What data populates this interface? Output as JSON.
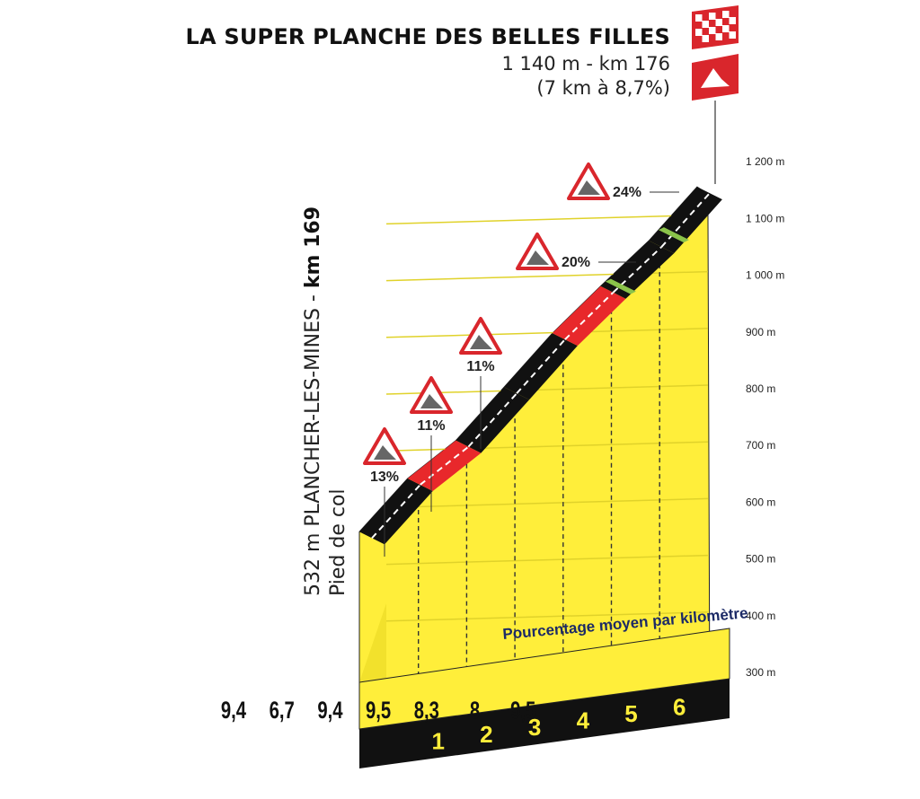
{
  "header": {
    "title": "LA SUPER PLANCHE DES BELLES FILLES",
    "summit_info": "1 140 m - km 176",
    "climb_info": "(7 km à 8,7%)"
  },
  "start": {
    "altitude": "532 m PLANCHER-LES-MINES - ",
    "km": "km 169",
    "label": "Pied de col"
  },
  "icons": {
    "finish": "checkered-flag-icon",
    "summit": "mountain-summit-icon",
    "gradient": "steep-gradient-warning-icon"
  },
  "colors": {
    "profile_fill": "#ffee3a",
    "road_black": "#111111",
    "road_red": "#e8282b",
    "road_green": "#8bc34a",
    "warning_red": "#d9262c",
    "scale_band": "#111111"
  },
  "chart_data": {
    "type": "area",
    "title": "LA SUPER PLANCHE DES BELLES FILLES",
    "xlabel": "",
    "ylabel": "",
    "y_unit": "m",
    "ylim": [
      300,
      1200
    ],
    "y_ticks": [
      "300 m",
      "400 m",
      "500 m",
      "600 m",
      "700 m",
      "800 m",
      "900 m",
      "1 000 m",
      "1 100 m",
      "1 200 m"
    ],
    "y_tick_values": [
      300,
      400,
      500,
      600,
      700,
      800,
      900,
      1000,
      1100,
      1200
    ],
    "x_ticks": [
      "1",
      "2",
      "3",
      "4",
      "5",
      "6"
    ],
    "x_tick_values": [
      1,
      2,
      3,
      4,
      5,
      6
    ],
    "legend_note": "Pourcentage moyen par kilomètre",
    "km_gradients": [
      "9,4",
      "6,7",
      "9,4",
      "9,5",
      "8,3",
      "8",
      "9,5"
    ],
    "profile_points": [
      {
        "km": 0,
        "alt": 532
      },
      {
        "km": 1,
        "alt": 626
      },
      {
        "km": 2,
        "alt": 693
      },
      {
        "km": 3,
        "alt": 787
      },
      {
        "km": 4,
        "alt": 882
      },
      {
        "km": 5,
        "alt": 965
      },
      {
        "km": 6,
        "alt": 1045
      },
      {
        "km": 7,
        "alt": 1140
      }
    ],
    "segment_colors": [
      "#111111",
      "#e8282b",
      "#111111",
      "#111111",
      "#e8282b",
      "#111111",
      "#111111"
    ],
    "max_gradients": [
      {
        "label": "13%",
        "km": 0.5
      },
      {
        "label": "11%",
        "km": 1.5
      },
      {
        "label": "11%",
        "km": 2.5
      },
      {
        "label": "20%",
        "km": 5.6
      },
      {
        "label": "24%",
        "km": 6.6
      }
    ]
  }
}
